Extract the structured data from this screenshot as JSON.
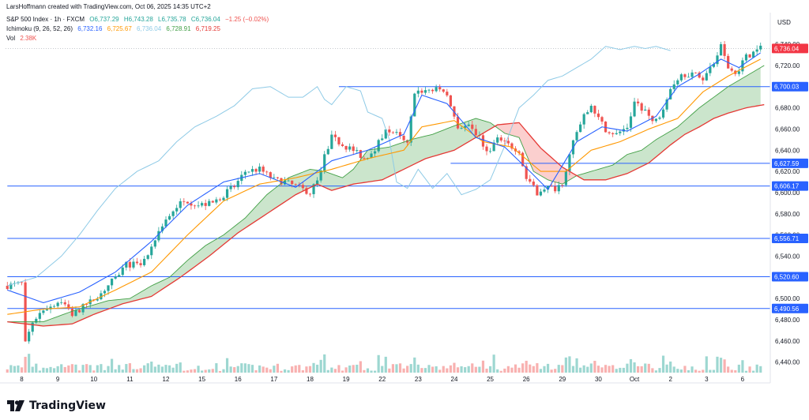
{
  "header": {
    "credit": "LarsHoffmann created with TradingView.com, Oct 06, 2025 14:35 UTC+2",
    "symbol": "S&P 500 Index · 1h · FXCM",
    "ohlc": {
      "o": "O6,737.29",
      "h": "H6,743.28",
      "l": "L6,735.78",
      "c": "C6,736.04",
      "change": "−1.25 (−0.02%)"
    },
    "ichimoku": {
      "label": "Ichimoku (9, 26, 52, 26)",
      "tenkan": "6,732.16",
      "kijun": "6,725.67",
      "chikou": "6,736.04",
      "spanA": "6,728.91",
      "spanB": "6,719.25"
    },
    "volume": {
      "label": "Vol",
      "value": "2.38K"
    }
  },
  "currency": "USD",
  "brand": "TradingView",
  "colors": {
    "up": "#26a69a",
    "down": "#ef5350",
    "tenkan": "#2962ff",
    "kijun": "#ff9800",
    "chikou": "#8ecae6",
    "spanA": "#43a047",
    "spanB": "#e53935",
    "hline": "#2962ff",
    "price_badge": "#f23645"
  },
  "chart_data": {
    "type": "candlestick",
    "ylim": [
      6430,
      6752
    ],
    "y_ticks": [
      "6,740.00",
      "6,720.00",
      "6,700.00",
      "6,680.00",
      "6,660.00",
      "6,640.00",
      "6,620.00",
      "6,600.00",
      "6,580.00",
      "6,560.00",
      "6,540.00",
      "6,520.00",
      "6,500.00",
      "6,480.00",
      "6,460.00",
      "6,440.00"
    ],
    "y_tick_values": [
      6740,
      6720,
      6700,
      6680,
      6660,
      6640,
      6620,
      6600,
      6580,
      6560,
      6540,
      6520,
      6500,
      6480,
      6460,
      6440
    ],
    "x_ticks": [
      "8",
      "9",
      "10",
      "11",
      "12",
      "15",
      "16",
      "17",
      "18",
      "19",
      "22",
      "23",
      "24",
      "25",
      "26",
      "29",
      "30",
      "Oct",
      "2",
      "3",
      "6"
    ],
    "x_tick_index": [
      4,
      14,
      24,
      34,
      44,
      54,
      64,
      74,
      84,
      94,
      104,
      114,
      124,
      134,
      144,
      154,
      164,
      174,
      184,
      194,
      204
    ],
    "last_price": "6,736.04",
    "last_price_value": 6736.04,
    "horizontal_levels": [
      {
        "label": "6,700.03",
        "value": 6700.03,
        "from_index": 92
      },
      {
        "label": "6,627.59",
        "value": 6627.59,
        "from_index": 123
      },
      {
        "label": "6,606.17",
        "value": 6606.17,
        "from_index": 0
      },
      {
        "label": "6,556.71",
        "value": 6556.71,
        "from_index": 0
      },
      {
        "label": "6,520.60",
        "value": 6520.6,
        "from_index": 0
      },
      {
        "label": "6,490.56",
        "value": 6490.56,
        "from_index": 0
      }
    ],
    "bar_count": 210,
    "price_path": [
      [
        0,
        6512
      ],
      [
        4,
        6514
      ],
      [
        5,
        6457
      ],
      [
        7,
        6478
      ],
      [
        10,
        6490
      ],
      [
        15,
        6498
      ],
      [
        18,
        6485
      ],
      [
        22,
        6494
      ],
      [
        26,
        6505
      ],
      [
        30,
        6520
      ],
      [
        33,
        6532
      ],
      [
        37,
        6532
      ],
      [
        40,
        6546
      ],
      [
        43,
        6570
      ],
      [
        47,
        6588
      ],
      [
        50,
        6592
      ],
      [
        53,
        6588
      ],
      [
        57,
        6590
      ],
      [
        60,
        6598
      ],
      [
        63,
        6606
      ],
      [
        66,
        6620
      ],
      [
        70,
        6622
      ],
      [
        74,
        6612
      ],
      [
        77,
        6610
      ],
      [
        80,
        6606
      ],
      [
        84,
        6600
      ],
      [
        86,
        6612
      ],
      [
        88,
        6634
      ],
      [
        90,
        6652
      ],
      [
        93,
        6645
      ],
      [
        96,
        6640
      ],
      [
        99,
        6632
      ],
      [
        102,
        6642
      ],
      [
        105,
        6660
      ],
      [
        108,
        6655
      ],
      [
        111,
        6645
      ],
      [
        113,
        6695
      ],
      [
        117,
        6697
      ],
      [
        121,
        6697
      ],
      [
        123,
        6682
      ],
      [
        125,
        6663
      ],
      [
        128,
        6662
      ],
      [
        131,
        6652
      ],
      [
        133,
        6638
      ],
      [
        136,
        6650
      ],
      [
        139,
        6645
      ],
      [
        142,
        6640
      ],
      [
        144,
        6612
      ],
      [
        147,
        6600
      ],
      [
        149,
        6605
      ],
      [
        152,
        6604
      ],
      [
        154,
        6610
      ],
      [
        157,
        6648
      ],
      [
        160,
        6672
      ],
      [
        162,
        6680
      ],
      [
        163,
        6675
      ],
      [
        166,
        6660
      ],
      [
        169,
        6655
      ],
      [
        172,
        6662
      ],
      [
        174,
        6685
      ],
      [
        177,
        6678
      ],
      [
        179,
        6665
      ],
      [
        181,
        6672
      ],
      [
        184,
        6700
      ],
      [
        187,
        6712
      ],
      [
        190,
        6712
      ],
      [
        193,
        6708
      ],
      [
        196,
        6722
      ],
      [
        198,
        6738
      ],
      [
        200,
        6718
      ],
      [
        202,
        6712
      ],
      [
        205,
        6728
      ],
      [
        209,
        6736
      ]
    ],
    "tenkan": [
      [
        0,
        6508
      ],
      [
        10,
        6496
      ],
      [
        20,
        6506
      ],
      [
        30,
        6525
      ],
      [
        40,
        6554
      ],
      [
        50,
        6588
      ],
      [
        60,
        6610
      ],
      [
        70,
        6618
      ],
      [
        80,
        6605
      ],
      [
        90,
        6630
      ],
      [
        100,
        6640
      ],
      [
        110,
        6655
      ],
      [
        115,
        6692
      ],
      [
        122,
        6684
      ],
      [
        130,
        6652
      ],
      [
        138,
        6643
      ],
      [
        145,
        6620
      ],
      [
        150,
        6603
      ],
      [
        158,
        6648
      ],
      [
        165,
        6662
      ],
      [
        172,
        6658
      ],
      [
        180,
        6672
      ],
      [
        186,
        6700
      ],
      [
        192,
        6712
      ],
      [
        198,
        6726
      ],
      [
        203,
        6718
      ],
      [
        209,
        6732
      ]
    ],
    "kijun": [
      [
        0,
        6485
      ],
      [
        10,
        6490
      ],
      [
        20,
        6492
      ],
      [
        30,
        6508
      ],
      [
        40,
        6525
      ],
      [
        50,
        6560
      ],
      [
        60,
        6592
      ],
      [
        70,
        6608
      ],
      [
        80,
        6614
      ],
      [
        90,
        6622
      ],
      [
        100,
        6632
      ],
      [
        110,
        6640
      ],
      [
        115,
        6662
      ],
      [
        124,
        6668
      ],
      [
        132,
        6648
      ],
      [
        140,
        6643
      ],
      [
        148,
        6620
      ],
      [
        155,
        6620
      ],
      [
        162,
        6640
      ],
      [
        170,
        6648
      ],
      [
        178,
        6660
      ],
      [
        186,
        6670
      ],
      [
        193,
        6695
      ],
      [
        200,
        6710
      ],
      [
        209,
        6726
      ]
    ],
    "chikou": [
      [
        0,
        6512
      ],
      [
        8,
        6520
      ],
      [
        15,
        6540
      ],
      [
        20,
        6560
      ],
      [
        25,
        6583
      ],
      [
        30,
        6604
      ],
      [
        36,
        6620
      ],
      [
        42,
        6630
      ],
      [
        47,
        6648
      ],
      [
        52,
        6662
      ],
      [
        58,
        6672
      ],
      [
        63,
        6682
      ],
      [
        68,
        6698
      ],
      [
        73,
        6700
      ],
      [
        78,
        6690
      ],
      [
        82,
        6690
      ],
      [
        86,
        6700
      ],
      [
        88,
        6688
      ],
      [
        90,
        6683
      ],
      [
        94,
        6700
      ],
      [
        98,
        6696
      ],
      [
        100,
        6676
      ],
      [
        104,
        6670
      ],
      [
        106,
        6650
      ],
      [
        108,
        6610
      ],
      [
        111,
        6604
      ],
      [
        114,
        6622
      ],
      [
        118,
        6604
      ],
      [
        122,
        6618
      ],
      [
        126,
        6598
      ],
      [
        130,
        6603
      ],
      [
        134,
        6612
      ],
      [
        138,
        6644
      ],
      [
        142,
        6680
      ],
      [
        146,
        6692
      ],
      [
        150,
        6706
      ],
      [
        154,
        6710
      ],
      [
        158,
        6718
      ],
      [
        162,
        6726
      ],
      [
        166,
        6738
      ],
      [
        170,
        6735
      ],
      [
        174,
        6738
      ],
      [
        177,
        6736
      ],
      [
        180,
        6738
      ],
      [
        182,
        6736
      ],
      [
        184,
        6734
      ]
    ],
    "spanA": [
      [
        0,
        6478
      ],
      [
        10,
        6478
      ],
      [
        18,
        6488
      ],
      [
        22,
        6492
      ],
      [
        28,
        6498
      ],
      [
        34,
        6500
      ],
      [
        40,
        6512
      ],
      [
        45,
        6520
      ],
      [
        50,
        6536
      ],
      [
        55,
        6550
      ],
      [
        60,
        6560
      ],
      [
        66,
        6576
      ],
      [
        72,
        6598
      ],
      [
        78,
        6614
      ],
      [
        84,
        6622
      ],
      [
        88,
        6620
      ],
      [
        93,
        6614
      ],
      [
        96,
        6622
      ],
      [
        100,
        6640
      ],
      [
        106,
        6643
      ],
      [
        112,
        6650
      ],
      [
        118,
        6655
      ],
      [
        124,
        6663
      ],
      [
        130,
        6670
      ],
      [
        134,
        6666
      ],
      [
        138,
        6656
      ],
      [
        142,
        6652
      ],
      [
        146,
        6620
      ],
      [
        150,
        6612
      ],
      [
        154,
        6608
      ],
      [
        158,
        6616
      ],
      [
        162,
        6620
      ],
      [
        168,
        6626
      ],
      [
        172,
        6636
      ],
      [
        176,
        6640
      ],
      [
        180,
        6650
      ],
      [
        186,
        6662
      ],
      [
        192,
        6680
      ],
      [
        196,
        6690
      ],
      [
        200,
        6700
      ],
      [
        205,
        6710
      ],
      [
        210,
        6720
      ]
    ],
    "spanB": [
      [
        0,
        6478
      ],
      [
        10,
        6474
      ],
      [
        18,
        6476
      ],
      [
        24,
        6485
      ],
      [
        32,
        6495
      ],
      [
        40,
        6502
      ],
      [
        48,
        6520
      ],
      [
        56,
        6540
      ],
      [
        64,
        6562
      ],
      [
        72,
        6580
      ],
      [
        80,
        6598
      ],
      [
        86,
        6608
      ],
      [
        90,
        6602
      ],
      [
        96,
        6608
      ],
      [
        104,
        6612
      ],
      [
        110,
        6622
      ],
      [
        116,
        6632
      ],
      [
        120,
        6636
      ],
      [
        124,
        6640
      ],
      [
        130,
        6652
      ],
      [
        136,
        6664
      ],
      [
        142,
        6666
      ],
      [
        148,
        6642
      ],
      [
        154,
        6624
      ],
      [
        160,
        6612
      ],
      [
        166,
        6612
      ],
      [
        172,
        6618
      ],
      [
        178,
        6628
      ],
      [
        184,
        6645
      ],
      [
        188,
        6655
      ],
      [
        192,
        6662
      ],
      [
        196,
        6670
      ],
      [
        200,
        6675
      ],
      [
        205,
        6680
      ],
      [
        210,
        6683
      ]
    ]
  }
}
